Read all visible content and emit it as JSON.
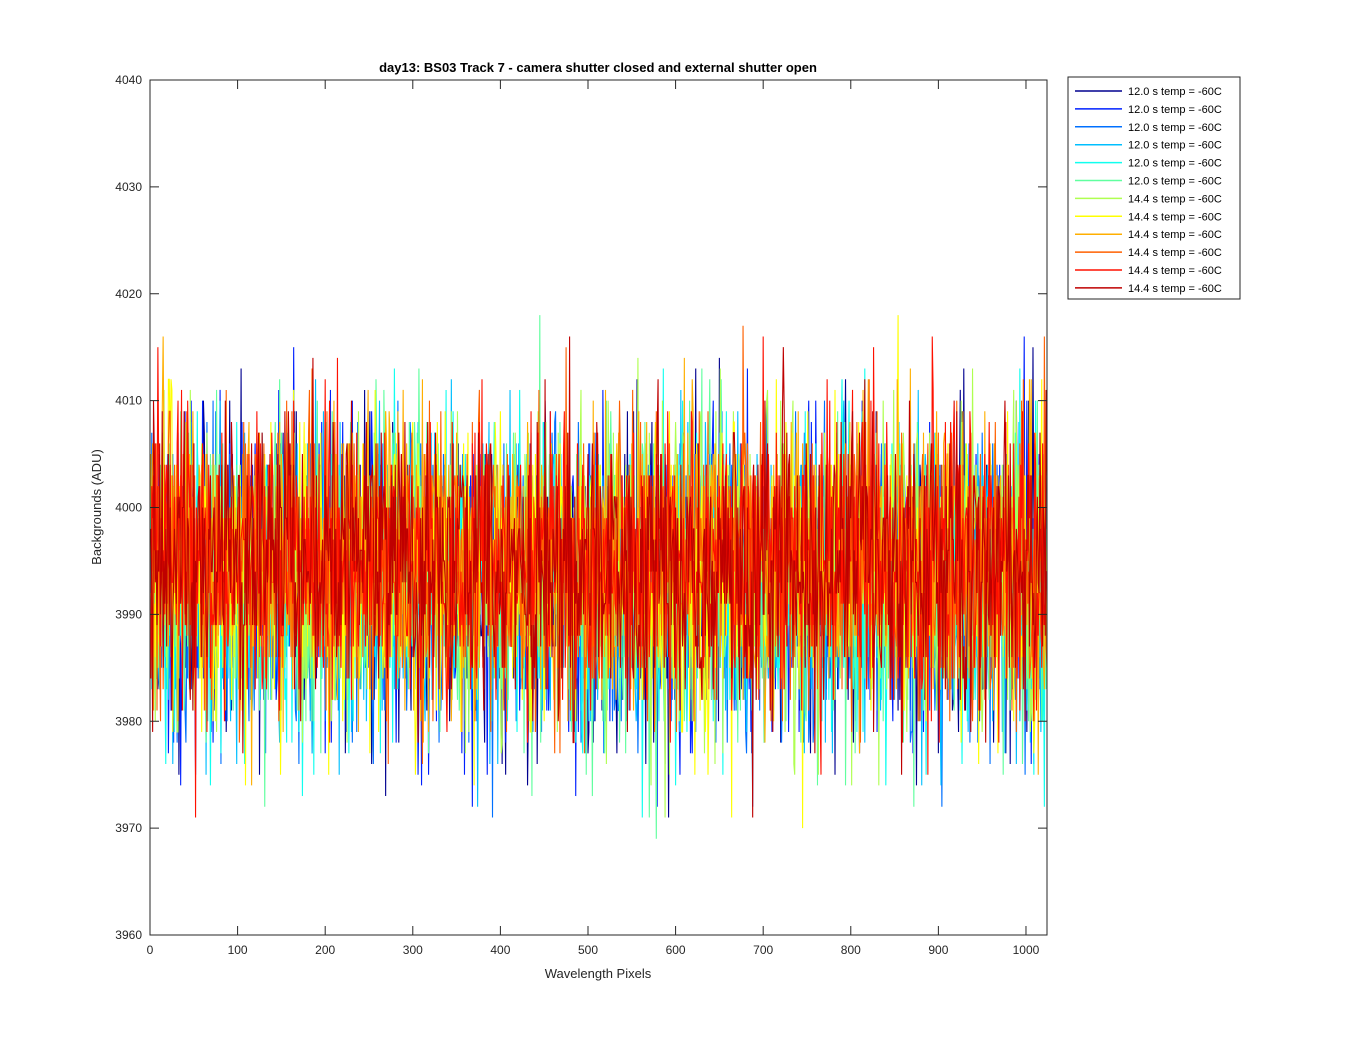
{
  "chart_data": {
    "type": "line",
    "title": "day13: BS03  Track 7 - camera shutter closed and external shutter open",
    "xlabel": "Wavelength Pixels",
    "ylabel": "Backgrounds (ADU)",
    "xlim": [
      0,
      1024
    ],
    "ylim": [
      3960,
      4040
    ],
    "xticks": [
      0,
      100,
      200,
      300,
      400,
      500,
      600,
      700,
      800,
      900,
      1000
    ],
    "yticks": [
      3960,
      3970,
      3980,
      3990,
      4000,
      4010,
      4020,
      4030,
      4040
    ],
    "grid": false,
    "legend_position": "outside-top-right",
    "series": [
      {
        "name": "12.0 s temp = -60C",
        "color": "#00008f",
        "mean": 3993,
        "std": 7.2,
        "seed": 11
      },
      {
        "name": "12.0 s temp = -60C",
        "color": "#0020ff",
        "mean": 3993,
        "std": 7.2,
        "seed": 23
      },
      {
        "name": "12.0 s temp = -60C",
        "color": "#0070ff",
        "mean": 3993,
        "std": 7.2,
        "seed": 37
      },
      {
        "name": "12.0 s temp = -60C",
        "color": "#00bfff",
        "mean": 3993,
        "std": 7.2,
        "seed": 41
      },
      {
        "name": "12.0 s temp = -60C",
        "color": "#10ffef",
        "mean": 3993,
        "std": 7.2,
        "seed": 53
      },
      {
        "name": "12.0 s temp = -60C",
        "color": "#60ff9f",
        "mean": 3993,
        "std": 7.2,
        "seed": 67
      },
      {
        "name": "14.4 s temp = -60C",
        "color": "#afff50",
        "mean": 3994,
        "std": 7.2,
        "seed": 71
      },
      {
        "name": "14.4 s temp = -60C",
        "color": "#ffff00",
        "mean": 3994,
        "std": 7.2,
        "seed": 83
      },
      {
        "name": "14.4 s temp = -60C",
        "color": "#ffaf00",
        "mean": 3995,
        "std": 7.0,
        "seed": 97
      },
      {
        "name": "14.4 s temp = -60C",
        "color": "#ff6000",
        "mean": 3995,
        "std": 7.0,
        "seed": 101
      },
      {
        "name": "14.4 s temp = -60C",
        "color": "#ff1000",
        "mean": 3995,
        "std": 6.8,
        "seed": 113
      },
      {
        "name": "14.4 s temp = -60C",
        "color": "#bf0000",
        "mean": 3995,
        "std": 6.8,
        "seed": 127
      }
    ],
    "notes_points": 1024
  }
}
